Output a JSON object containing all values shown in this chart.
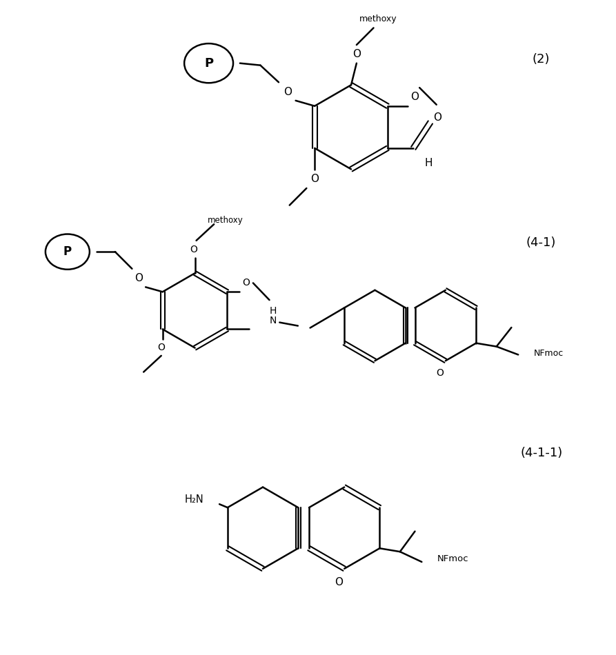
{
  "bg_color": "#ffffff",
  "line_color": "#000000",
  "line_width": 1.5,
  "label_2": "(2)",
  "label_41": "(4-1)",
  "label_411": "(4-1-1)",
  "fig_width": 8.93,
  "fig_height": 9.5
}
